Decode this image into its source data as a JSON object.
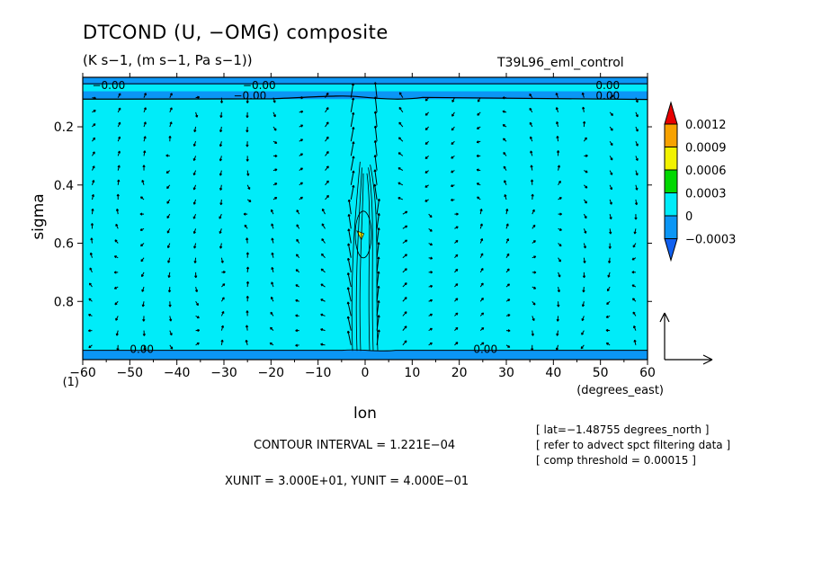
{
  "header": {
    "title": "DTCOND (U, −OMG) composite",
    "subtitle": "(K s−1, (m s−1, Pa s−1))",
    "run_name": "T39L96_eml_control"
  },
  "info": {
    "lines": [
      "[ lat=−1.48755 degrees_north ]",
      "[ refer to advect spct filtering data ]",
      "[ comp threshold = 0.00015 ]"
    ],
    "contour_interval": "CONTOUR INTERVAL = 1.221E−04",
    "units": "XUNIT = 3.000E+01, YUNIT = 4.000E−01"
  },
  "colors": {
    "band_1": "#0b96f5",
    "band_2": "#00ecf9",
    "band_3": "#00d800",
    "band_4": "#f2f200",
    "band_5": "#f7a200",
    "band_6": "#e80000",
    "under": "#1060f0",
    "anomaly": "#f2f200"
  },
  "chart_data": {
    "type": "heatmap",
    "title": "DTCOND (U, −OMG) composite",
    "xlabel": "lon",
    "xunit": "(degrees_east)",
    "ylabel": "sigma",
    "xlim": [
      -60,
      60
    ],
    "ylim": [
      1.0,
      0.03
    ],
    "x_ticks": [
      -60,
      -50,
      -40,
      -30,
      -20,
      -10,
      0,
      10,
      20,
      30,
      40,
      50,
      60
    ],
    "y_ticks": [
      0.2,
      0.4,
      0.6,
      0.8
    ],
    "y_bottom_label": "(1)",
    "colorbar": {
      "levels": [
        -0.0003,
        0,
        0.0003,
        0.0006,
        0.0009,
        0.0012
      ],
      "labels": [
        "−0.0003",
        "0",
        "0.0003",
        "0.0006",
        "0.0009",
        "0.0012"
      ]
    },
    "contour_labels": [
      {
        "text": "−0.00",
        "x": -58,
        "y": 0.058
      },
      {
        "text": "−0.00",
        "x": -26,
        "y": 0.058
      },
      {
        "text": "0.00",
        "x": 49,
        "y": 0.058
      },
      {
        "text": "−0.00",
        "x": -28,
        "y": 0.093
      },
      {
        "text": "0.00",
        "x": 49,
        "y": 0.093
      },
      {
        "text": "0.00",
        "x": -50,
        "y": 0.965
      },
      {
        "text": "0.00",
        "x": 23,
        "y": 0.965
      }
    ],
    "regions": [
      {
        "level": "negative",
        "sigma_range": [
          0.03,
          0.055
        ]
      },
      {
        "level": "negative",
        "sigma_range": [
          0.078,
          0.105
        ]
      },
      {
        "level": "negative",
        "sigma_range": [
          0.968,
          1.0
        ]
      },
      {
        "level": "positive_small",
        "lon": -1,
        "sigma": 0.57
      }
    ],
    "reference_vector": {
      "x_unit": 30,
      "y_unit": 0.4
    }
  }
}
